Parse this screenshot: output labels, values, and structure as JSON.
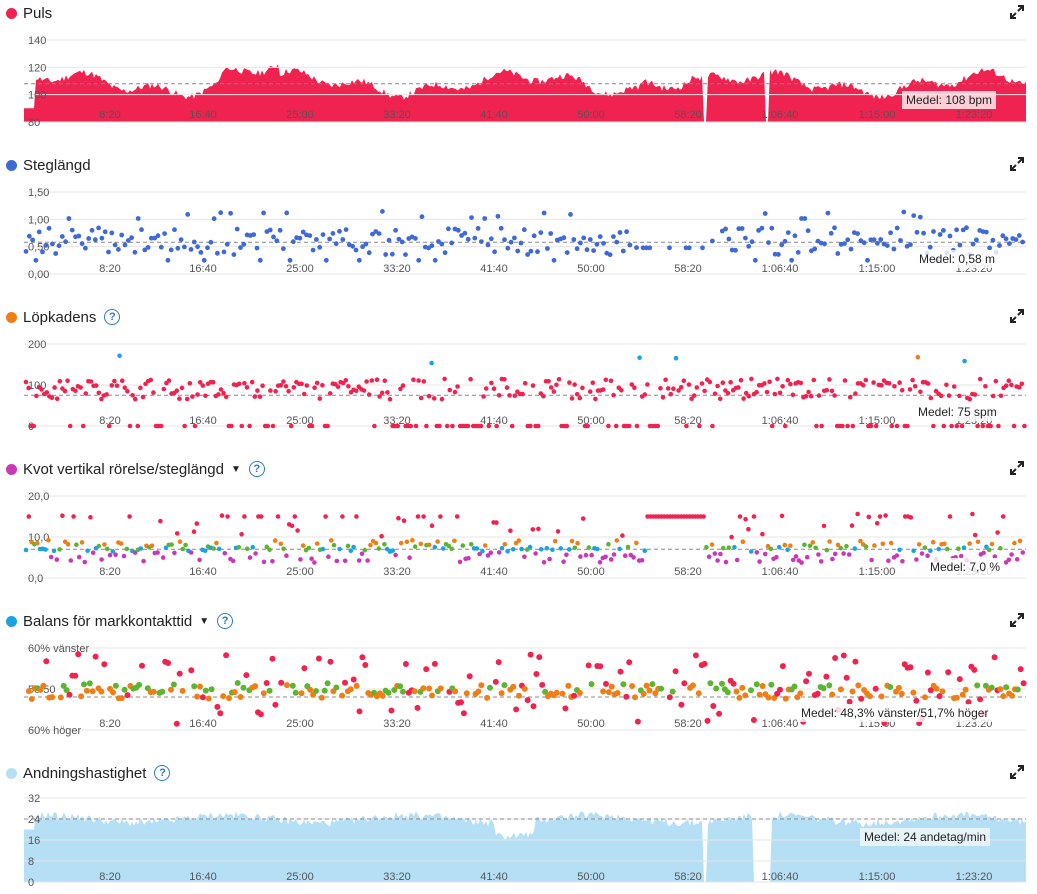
{
  "x_ticks": [
    "8:20",
    "16:40",
    "25:00",
    "33:20",
    "41:40",
    "50:00",
    "58:20",
    "1:06:40",
    "1:15:00",
    "1:23:20"
  ],
  "panels": [
    {
      "key": "puls",
      "title": "Puls",
      "color": "#f0224f",
      "help": false,
      "caret": false,
      "y_ticks": [
        "140",
        "120",
        "100",
        "80"
      ],
      "avg": "Medel: 108 bpm"
    },
    {
      "key": "steg",
      "title": "Steglängd",
      "color": "#3f69d6",
      "help": false,
      "caret": false,
      "y_ticks": [
        "1,50",
        "1,00",
        "0,50",
        "0,00"
      ],
      "avg": "Medel: 0,58 m"
    },
    {
      "key": "kad",
      "title": "Löpkadens",
      "color": "#f07e17",
      "help": true,
      "caret": false,
      "y_ticks": [
        "200",
        "100",
        "0"
      ],
      "avg": "Medel: 75 spm"
    },
    {
      "key": "kvot",
      "title": "Kvot vertikal rörelse/steglängd",
      "color": "#c938b9",
      "help": true,
      "caret": true,
      "y_ticks": [
        "20,0",
        "10,0",
        "0,0"
      ],
      "avg": "Medel: 7,0 %"
    },
    {
      "key": "bal",
      "title": "Balans för markkontakttid",
      "color": "#1aa3e0",
      "help": true,
      "caret": true,
      "y_ticks": [
        "60% vänster",
        "50/50",
        "60% höger"
      ],
      "avg": "Medel: 48,3% vänster/51,7% höger"
    },
    {
      "key": "andn",
      "title": "Andningshastighet",
      "color": "#b4dff5",
      "help": true,
      "caret": false,
      "y_ticks": [
        "32",
        "24",
        "16",
        "8",
        "0"
      ],
      "avg": "Medel: 24 andetag/min"
    }
  ],
  "chart_data": [
    {
      "type": "area",
      "title": "Puls",
      "unit": "bpm",
      "ylim": [
        80,
        140
      ],
      "mean": 108,
      "duration": "1:27:00"
    },
    {
      "type": "scatter",
      "title": "Steglängd",
      "unit": "m",
      "ylim": [
        0,
        1.5
      ],
      "mean": 0.58
    },
    {
      "type": "scatter",
      "title": "Löpkadens",
      "unit": "spm",
      "ylim": [
        0,
        200
      ],
      "mean": 75
    },
    {
      "type": "scatter",
      "title": "Kvot vertikal rörelse/steglängd",
      "unit": "%",
      "ylim": [
        0,
        20
      ],
      "mean": 7.0
    },
    {
      "type": "scatter",
      "title": "Balans för markkontakttid",
      "unit": "%",
      "ylim": [
        "60% höger",
        "60% vänster"
      ],
      "mean": "48,3% vänster/51,7% höger"
    },
    {
      "type": "area",
      "title": "Andningshastighet",
      "unit": "andetag/min",
      "ylim": [
        0,
        32
      ],
      "mean": 24
    }
  ],
  "colors": {
    "red": "#f0224f",
    "blue": "#3f69d6",
    "orange": "#f07e17",
    "purple": "#c938b9",
    "cyan": "#1aa3e0",
    "lightblue": "#b4dff5",
    "green": "#5cb531"
  }
}
